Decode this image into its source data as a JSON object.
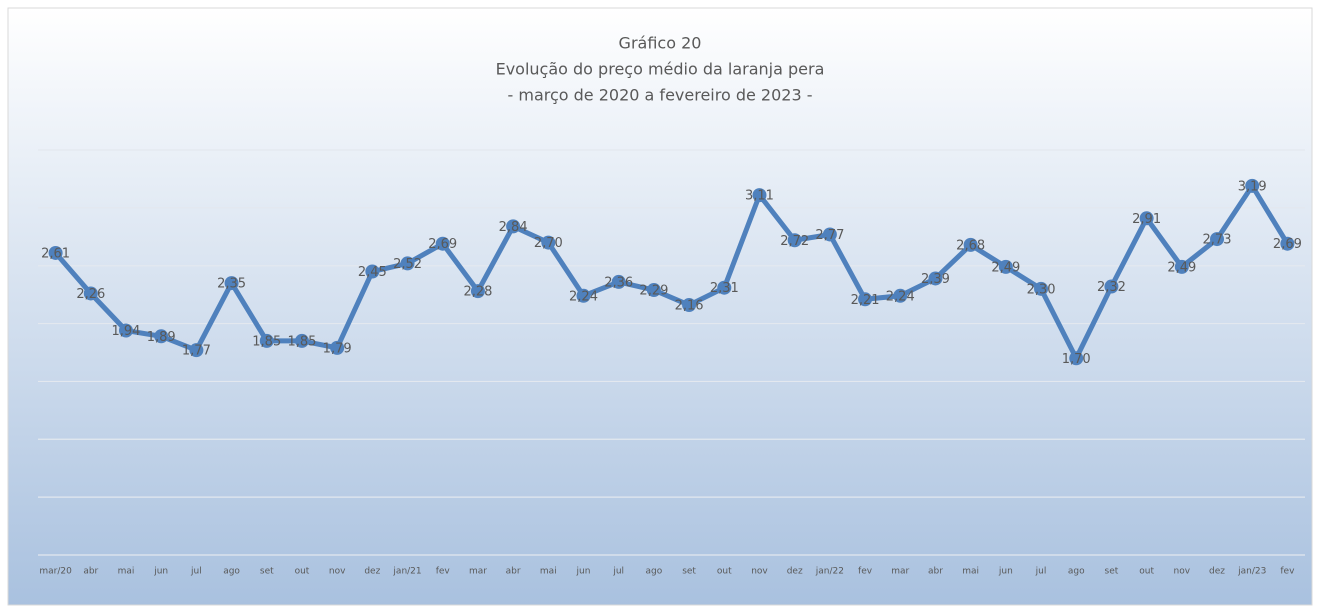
{
  "chart_data": {
    "type": "line",
    "title": "Gráfico 20",
    "subtitle": [
      "Evolução do preço médio da laranja pera",
      "- março de 2020 a fevereiro de 2023 -"
    ],
    "categories": [
      "mar/20",
      "abr",
      "mai",
      "jun",
      "jul",
      "ago",
      "set",
      "out",
      "nov",
      "dez",
      "jan/21",
      "fev",
      "mar",
      "abr",
      "mai",
      "jun",
      "jul",
      "ago",
      "set",
      "out",
      "nov",
      "dez",
      "jan/22",
      "fev",
      "mar",
      "abr",
      "mai",
      "jun",
      "jul",
      "ago",
      "set",
      "out",
      "nov",
      "dez",
      "jan/23",
      "fev"
    ],
    "series": [
      {
        "name": "Preço médio",
        "color": "#4f81bd",
        "values": [
          2.61,
          2.26,
          1.94,
          1.89,
          1.77,
          2.35,
          1.85,
          1.85,
          1.79,
          2.45,
          2.52,
          2.69,
          2.28,
          2.84,
          2.7,
          2.24,
          2.36,
          2.29,
          2.16,
          2.31,
          3.11,
          2.72,
          2.77,
          2.21,
          2.24,
          2.39,
          2.68,
          2.49,
          2.3,
          1.7,
          2.32,
          2.91,
          2.49,
          2.73,
          3.19,
          2.69
        ],
        "value_labels": [
          "2,61",
          "2,26",
          "1,94",
          "1,89",
          "1,77",
          "2,35",
          "1,85",
          "1,85",
          "1,79",
          "2,45",
          "2,52",
          "2,69",
          "2,28",
          "2,84",
          "2,70",
          "2,24",
          "2,36",
          "2,29",
          "2,16",
          "2,31",
          "3,11",
          "2,72",
          "2,77",
          "2,21",
          "2,24",
          "2,39",
          "2,68",
          "2,49",
          "2,30",
          "1,70",
          "2,32",
          "2,91",
          "2,49",
          "2,73",
          "3,19",
          "2,69"
        ]
      }
    ],
    "ylim": [
      0,
      3.5
    ],
    "yticks": [
      0,
      0.5,
      1,
      1.5,
      2,
      2.5,
      3,
      3.5
    ],
    "grid": true
  }
}
